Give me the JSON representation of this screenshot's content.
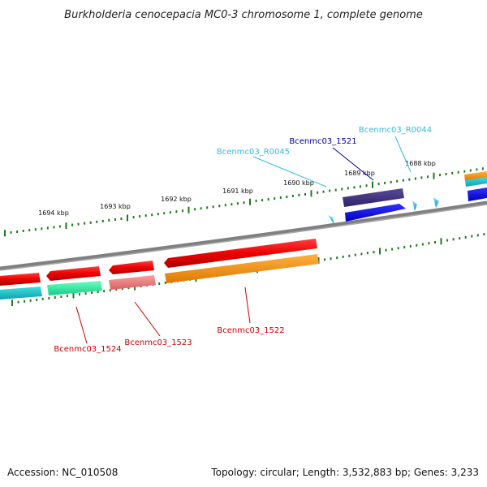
{
  "title": "Burkholderia cenocepacia MC0-3 chromosome 1, complete genome",
  "footer": {
    "accession": "Accession: NC_010508",
    "info": "Topology: circular; Length: 3,532,883 bp; Genes: 3,233"
  },
  "colors": {
    "backbone": "#808080",
    "tick": "#1e7a1e",
    "red_label": "#cc0000",
    "blue_label": "#000099",
    "cyan_label": "#33bbdd"
  },
  "kbp_labels": [
    "1694 kbp",
    "1693 kbp",
    "1692 kbp",
    "1691 kbp",
    "1690 kbp",
    "1689 kbp",
    "1688 kbp"
  ],
  "genes": [
    {
      "label": "Bcenmc03_1524",
      "color": "#cc0000"
    },
    {
      "label": "Bcenmc03_1523",
      "color": "#cc0000"
    },
    {
      "label": "Bcenmc03_1522",
      "color": "#cc0000"
    },
    {
      "label": "Bcenmc03_1521",
      "color": "#000099"
    },
    {
      "label": "Bcenmc03_R0045",
      "color": "#33bbdd"
    },
    {
      "label": "Bcenmc03_R0044",
      "color": "#33bbdd"
    }
  ]
}
